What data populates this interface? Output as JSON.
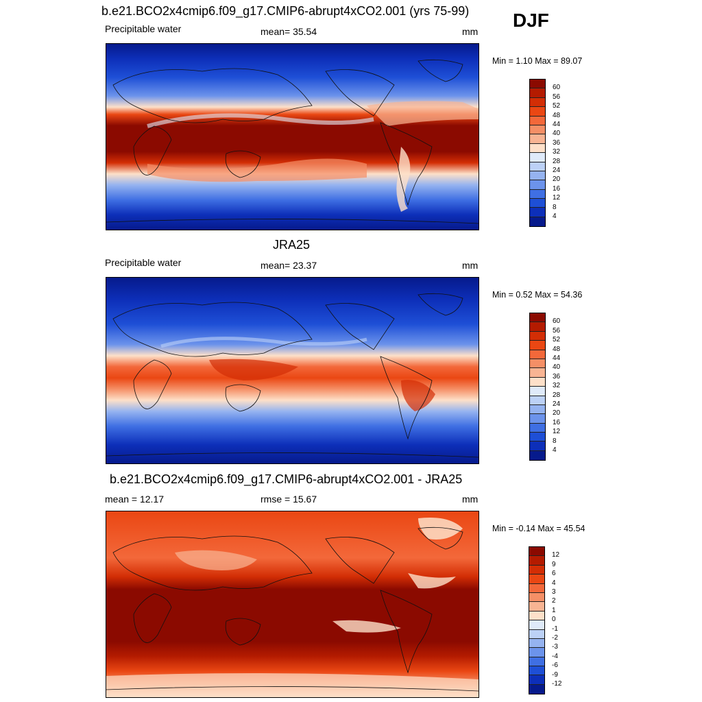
{
  "header": {
    "season": "DJF"
  },
  "panels": [
    {
      "title": "b.e21.BCO2x4cmip6.f09_g17.CMIP6-abrupt4xCO2.001 (yrs 75-99)",
      "left_label": "Precipitable water",
      "center_label": "mean=  35.54",
      "right_label": "mm",
      "minmax": "Min =   1.10 Max =  89.07",
      "colorbar": {
        "ticks": [
          "60",
          "56",
          "52",
          "48",
          "44",
          "40",
          "36",
          "32",
          "28",
          "24",
          "20",
          "16",
          "12",
          "8",
          "4"
        ],
        "colors": [
          "#8b0a00",
          "#b41b00",
          "#d32e05",
          "#ea4713",
          "#f3683a",
          "#f58f66",
          "#f8b493",
          "#fde0c9",
          "#dfeaf9",
          "#bcd1f6",
          "#95b3f0",
          "#6c93eb",
          "#3f6fe3",
          "#1e4fd6",
          "#0d2fb9",
          "#061a8c"
        ]
      },
      "style": "model"
    },
    {
      "title": "JRA25",
      "left_label": "Precipitable water",
      "center_label": "mean=  23.37",
      "right_label": "mm",
      "minmax": "Min =   0.52 Max =  54.36",
      "colorbar": {
        "ticks": [
          "60",
          "56",
          "52",
          "48",
          "44",
          "40",
          "36",
          "32",
          "28",
          "24",
          "20",
          "16",
          "12",
          "8",
          "4"
        ],
        "colors": [
          "#8b0a00",
          "#b41b00",
          "#d32e05",
          "#ea4713",
          "#f3683a",
          "#f58f66",
          "#f8b493",
          "#fde0c9",
          "#dfeaf9",
          "#bcd1f6",
          "#95b3f0",
          "#6c93eb",
          "#3f6fe3",
          "#1e4fd6",
          "#0d2fb9",
          "#061a8c"
        ]
      },
      "style": "obs"
    },
    {
      "title": "b.e21.BCO2x4cmip6.f09_g17.CMIP6-abrupt4xCO2.001 - JRA25",
      "left_label": "mean =  12.17",
      "center_label": "rmse =  15.67",
      "right_label": "mm",
      "minmax": "Min =  -0.14 Max =  45.54",
      "colorbar": {
        "ticks": [
          "12",
          "9",
          "6",
          "4",
          "3",
          "2",
          "1",
          "0",
          "-1",
          "-2",
          "-3",
          "-4",
          "-6",
          "-9",
          "-12"
        ],
        "colors": [
          "#8b0a00",
          "#b41b00",
          "#d32e05",
          "#ea4713",
          "#f3683a",
          "#f58f66",
          "#f8b493",
          "#fde0c9",
          "#dfeaf9",
          "#bcd1f6",
          "#95b3f0",
          "#6c93eb",
          "#3f6fe3",
          "#1e4fd6",
          "#0d2fb9",
          "#061a8c"
        ]
      },
      "style": "diff"
    }
  ]
}
